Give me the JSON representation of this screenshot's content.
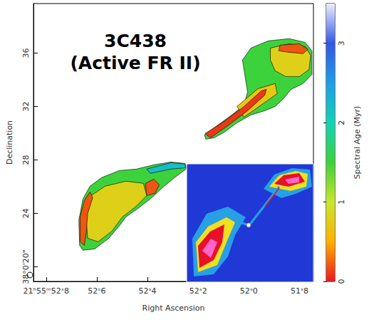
{
  "chart_data": {
    "type": "map",
    "title": "3C438",
    "subtitle": "(Active FR II)",
    "x_label": "Right Ascension",
    "y_label": "Declination",
    "xlim": [
      52.85,
      51.745
    ],
    "xticks": [
      {
        "value": 52.8,
        "label": "21ʰ55ᵐ52ˢ8"
      },
      {
        "value": 52.6,
        "label": "52ˢ6"
      },
      {
        "value": 52.4,
        "label": "52ˢ4"
      },
      {
        "value": 52.2,
        "label": "52ˢ2"
      },
      {
        "value": 52.0,
        "label": "52ˢ0"
      },
      {
        "value": 51.8,
        "label": "51ˢ8"
      }
    ],
    "ylim": [
      18.9,
      39.7
    ],
    "yticks": [
      {
        "value": 20,
        "label": "38°0'20\""
      },
      24,
      28,
      32,
      36
    ],
    "colorbar": {
      "label": "Spectral Age (Myr)",
      "lim": [
        0,
        3.5
      ],
      "ticks": [
        0,
        1,
        2,
        3
      ]
    },
    "regions": [
      {
        "age": 1.5,
        "points": [
          [
            52.175,
            29.87
          ],
          [
            52.129,
            30.51
          ],
          [
            52.06,
            31.47
          ],
          [
            52.019,
            32.11
          ],
          [
            52.005,
            33.07
          ],
          [
            52.014,
            34.13
          ],
          [
            52.025,
            35.47
          ],
          [
            51.992,
            36.37
          ],
          [
            51.923,
            36.91
          ],
          [
            51.841,
            37.07
          ],
          [
            51.778,
            36.8
          ],
          [
            51.751,
            36.16
          ],
          [
            51.751,
            34.4
          ],
          [
            51.786,
            33.71
          ],
          [
            51.833,
            33.28
          ],
          [
            51.866,
            32.53
          ],
          [
            51.896,
            32.0
          ],
          [
            51.937,
            31.68
          ],
          [
            51.992,
            31.36
          ],
          [
            52.047,
            30.77
          ],
          [
            52.096,
            30.08
          ],
          [
            52.137,
            29.65
          ],
          [
            52.17,
            29.55
          ]
        ]
      },
      {
        "age": 0.8,
        "points": [
          [
            51.915,
            36.37
          ],
          [
            51.841,
            36.69
          ],
          [
            51.778,
            36.48
          ],
          [
            51.756,
            35.84
          ],
          [
            51.762,
            34.77
          ],
          [
            51.8,
            34.24
          ],
          [
            51.855,
            34.24
          ],
          [
            51.896,
            34.67
          ],
          [
            51.915,
            35.47
          ]
        ]
      },
      {
        "age": 0.2,
        "points": [
          [
            51.877,
            36.59
          ],
          [
            51.8,
            36.69
          ],
          [
            51.767,
            36.27
          ],
          [
            51.786,
            35.95
          ],
          [
            51.841,
            36.05
          ],
          [
            51.882,
            36.16
          ]
        ]
      },
      {
        "age": 0.7,
        "points": [
          [
            52.047,
            32.0
          ],
          [
            51.964,
            33.33
          ],
          [
            51.896,
            33.71
          ],
          [
            51.888,
            32.96
          ],
          [
            51.951,
            32.11
          ],
          [
            52.019,
            31.2
          ]
        ]
      },
      {
        "age": 0.1,
        "points": [
          [
            52.173,
            29.97
          ],
          [
            52.101,
            30.83
          ],
          [
            52.019,
            32.0
          ],
          [
            51.951,
            33.17
          ],
          [
            51.931,
            33.28
          ],
          [
            51.937,
            32.85
          ],
          [
            52.005,
            31.68
          ],
          [
            52.079,
            30.61
          ],
          [
            52.151,
            29.65
          ]
        ]
      },
      {
        "age": 1.5,
        "points": [
          [
            52.668,
            21.6
          ],
          [
            52.671,
            23.47
          ],
          [
            52.655,
            25.07
          ],
          [
            52.627,
            26.03
          ],
          [
            52.581,
            26.67
          ],
          [
            52.512,
            27.2
          ],
          [
            52.444,
            27.31
          ],
          [
            52.375,
            27.63
          ],
          [
            52.307,
            27.84
          ],
          [
            52.252,
            27.73
          ],
          [
            52.244,
            27.36
          ],
          [
            52.293,
            26.67
          ],
          [
            52.334,
            26.03
          ],
          [
            52.389,
            25.07
          ],
          [
            52.444,
            24.27
          ],
          [
            52.485,
            23.73
          ],
          [
            52.512,
            23.04
          ],
          [
            52.553,
            22.13
          ],
          [
            52.608,
            21.33
          ],
          [
            52.655,
            21.23
          ]
        ]
      },
      {
        "age": 2.2,
        "points": [
          [
            52.403,
            27.31
          ],
          [
            52.307,
            27.79
          ],
          [
            52.252,
            27.68
          ],
          [
            52.249,
            27.41
          ],
          [
            52.307,
            27.31
          ],
          [
            52.389,
            26.99
          ]
        ]
      },
      {
        "age": 0.8,
        "points": [
          [
            52.644,
            24.0
          ],
          [
            52.622,
            25.33
          ],
          [
            52.567,
            26.03
          ],
          [
            52.485,
            26.4
          ],
          [
            52.416,
            26.24
          ],
          [
            52.403,
            25.33
          ],
          [
            52.444,
            24.53
          ],
          [
            52.499,
            23.73
          ],
          [
            52.54,
            22.67
          ],
          [
            52.595,
            21.87
          ],
          [
            52.636,
            22.13
          ]
        ]
      },
      {
        "age": 0.2,
        "points": [
          [
            52.666,
            21.87
          ],
          [
            52.666,
            23.73
          ],
          [
            52.649,
            24.96
          ],
          [
            52.627,
            25.6
          ],
          [
            52.616,
            25.17
          ],
          [
            52.636,
            24.0
          ],
          [
            52.641,
            22.67
          ],
          [
            52.649,
            21.6
          ]
        ]
      },
      {
        "age": 0.2,
        "points": [
          [
            52.408,
            26.24
          ],
          [
            52.375,
            26.56
          ],
          [
            52.353,
            26.13
          ],
          [
            52.37,
            25.49
          ],
          [
            52.403,
            25.33
          ]
        ]
      }
    ]
  }
}
